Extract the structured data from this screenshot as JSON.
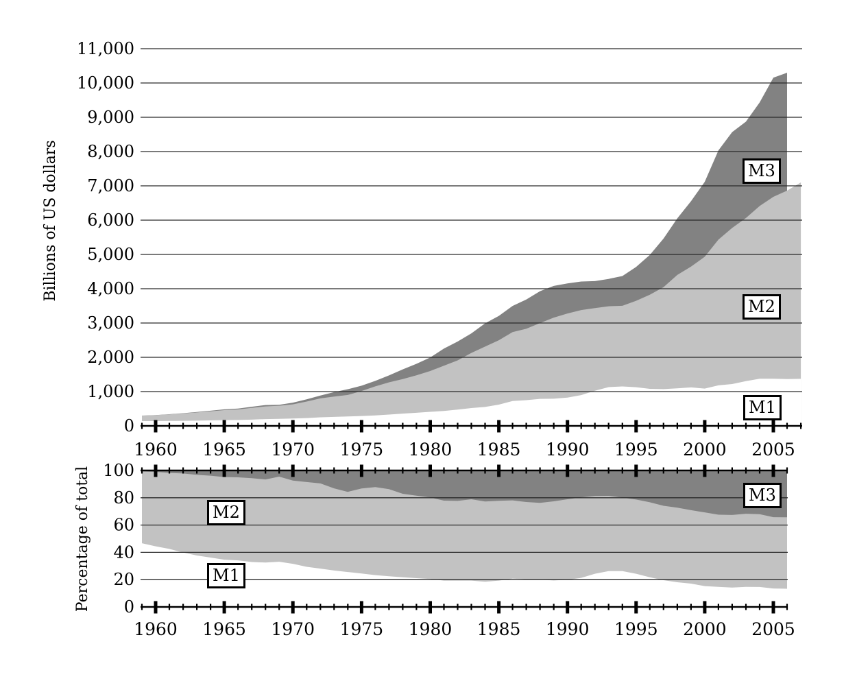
{
  "chart_data": [
    {
      "type": "area",
      "title": "",
      "ylabel": "Billions of US dollars",
      "grid": true,
      "legend_position": "in-plot boxed labels",
      "x_range": [
        1959,
        2007
      ],
      "x_major_ticks": [
        1960,
        1965,
        1970,
        1975,
        1980,
        1985,
        1990,
        1995,
        2000,
        2005
      ],
      "x_tick_labels": [
        "1960",
        "1965",
        "1970",
        "1975",
        "1980",
        "1985",
        "1990",
        "1995",
        "2000",
        "2005"
      ],
      "ylim": [
        0,
        11000
      ],
      "y_ticks": [
        0,
        1000,
        2000,
        3000,
        4000,
        5000,
        6000,
        7000,
        8000,
        9000,
        10000,
        11000
      ],
      "y_tick_labels": [
        "0",
        "1,000",
        "2,000",
        "3,000",
        "4,000",
        "5,000",
        "6,000",
        "7,000",
        "8,000",
        "9,000",
        "10,000",
        "11,000"
      ],
      "series": [
        {
          "name": "M3",
          "color": "#828282",
          "x_start": 1959,
          "x_end": 2006,
          "values": [
            300,
            315,
            341,
            371,
            406,
            442,
            482,
            505,
            557,
            607,
            616,
            677,
            776,
            886,
            985,
            1070,
            1172,
            1312,
            1472,
            1647,
            1809,
            1996,
            2254,
            2460,
            2697,
            2990,
            3208,
            3499,
            3686,
            3929,
            4082,
            4155,
            4210,
            4222,
            4286,
            4370,
            4636,
            4986,
            5461,
            6052,
            6552,
            7118,
            8035,
            8568,
            8872,
            9433,
            10154,
            10300
          ]
        },
        {
          "name": "M2",
          "color": "#c2c2c2",
          "x_start": 1959,
          "x_end": 2007,
          "values": [
            298,
            312,
            335,
            363,
            393,
            425,
            459,
            480,
            525,
            567,
            588,
            627,
            710,
            802,
            856,
            902,
            1017,
            1152,
            1270,
            1366,
            1474,
            1600,
            1756,
            1911,
            2127,
            2311,
            2497,
            2734,
            2833,
            2997,
            3159,
            3279,
            3379,
            3434,
            3487,
            3502,
            3649,
            3824,
            4046,
            4401,
            4644,
            4933,
            5433,
            5771,
            6062,
            6411,
            6680,
            6860,
            7100
          ]
        },
        {
          "name": "M1",
          "color": "#ffffff",
          "x_start": 1959,
          "x_end": 2007,
          "values": [
            140,
            140,
            145,
            148,
            153,
            160,
            167,
            172,
            183,
            197,
            204,
            214,
            228,
            249,
            263,
            274,
            287,
            306,
            331,
            358,
            382,
            409,
            436,
            474,
            521,
            552,
            620,
            724,
            750,
            787,
            792,
            825,
            897,
            1024,
            1129,
            1150,
            1127,
            1081,
            1072,
            1095,
            1122,
            1088,
            1182,
            1220,
            1306,
            1376,
            1375,
            1366,
            1373
          ]
        }
      ]
    },
    {
      "type": "area",
      "title": "",
      "ylabel": "Percentage of total",
      "grid": true,
      "legend_position": "in-plot boxed labels",
      "x_range": [
        1959,
        2006
      ],
      "x_major_ticks": [
        1960,
        1965,
        1970,
        1975,
        1980,
        1985,
        1990,
        1995,
        2000,
        2005
      ],
      "x_tick_labels": [
        "1960",
        "1965",
        "1970",
        "1975",
        "1980",
        "1985",
        "1990",
        "1995",
        "2000",
        "2005"
      ],
      "ylim": [
        0,
        100
      ],
      "y_ticks": [
        0,
        20,
        40,
        60,
        80,
        100
      ],
      "y_tick_labels": [
        "0",
        "20",
        "40",
        "60",
        "80",
        "100"
      ],
      "series": [
        {
          "name": "M3",
          "color": "#828282",
          "x_start": 1959,
          "x_end": 2006,
          "constant": 100
        },
        {
          "name": "M2",
          "color": "#c2c2c2",
          "x_start": 1959,
          "x_end": 2006,
          "values": [
            99.3,
            99.0,
            98.2,
            97.8,
            96.8,
            96.2,
            95.2,
            95.0,
            94.3,
            93.4,
            95.5,
            92.6,
            91.5,
            90.5,
            86.9,
            84.3,
            86.8,
            87.8,
            86.3,
            82.9,
            81.5,
            80.2,
            77.9,
            77.7,
            78.9,
            77.3,
            77.8,
            78.1,
            76.9,
            76.3,
            77.4,
            78.9,
            80.3,
            81.3,
            81.4,
            80.1,
            78.7,
            76.7,
            74.1,
            72.7,
            70.9,
            69.3,
            67.6,
            67.4,
            68.3,
            68.0,
            65.8,
            65.7
          ]
        },
        {
          "name": "M1",
          "color": "#ffffff",
          "x_start": 1959,
          "x_end": 2006,
          "values": [
            46.7,
            44.4,
            42.5,
            39.9,
            37.7,
            36.2,
            34.6,
            34.1,
            32.9,
            32.5,
            33.1,
            31.6,
            29.4,
            28.1,
            26.7,
            25.6,
            24.5,
            23.3,
            22.5,
            21.7,
            21.1,
            20.5,
            19.3,
            19.3,
            19.3,
            18.5,
            19.3,
            20.7,
            20.3,
            20.0,
            19.4,
            19.9,
            21.3,
            24.3,
            26.3,
            26.3,
            24.3,
            21.7,
            19.6,
            18.1,
            17.1,
            15.3,
            14.7,
            14.2,
            14.7,
            14.6,
            13.5,
            13.3
          ]
        }
      ]
    }
  ],
  "colors": {
    "m1_area": "#ffffff",
    "m2_area": "#c2c2c2",
    "m3_area": "#828282",
    "gridline": "#2a2a2a",
    "axis": "#000000",
    "background": "#ffffff"
  }
}
